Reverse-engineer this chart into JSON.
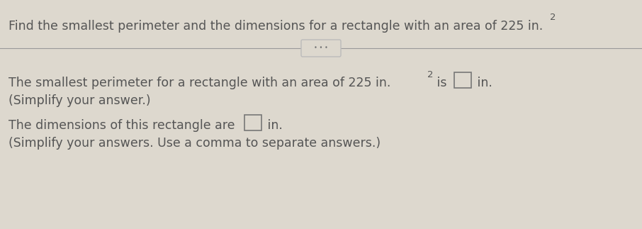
{
  "bg_color": "#ddd8ce",
  "text_color": "#555555",
  "title": "Find the smallest perimeter and the dimensions for a rectangle with an area of 225 in.",
  "title_super": "2",
  "line1_pre": "The smallest perimeter for a rectangle with an area of 225 in.",
  "line1_super": "2",
  "line1_post": " is",
  "line1_afterbox": " in.",
  "line2": "(Simplify your answer.)",
  "line3_pre": "The dimensions of this rectangle are",
  "line3_post": " in.",
  "line4": "(Simplify your answers. Use a comma to separate answers.)",
  "divider_color": "#999999",
  "box_color": "#aaaaaa",
  "dots_color": "#777777",
  "font_size": 12.5,
  "font_size_small": 11.5
}
